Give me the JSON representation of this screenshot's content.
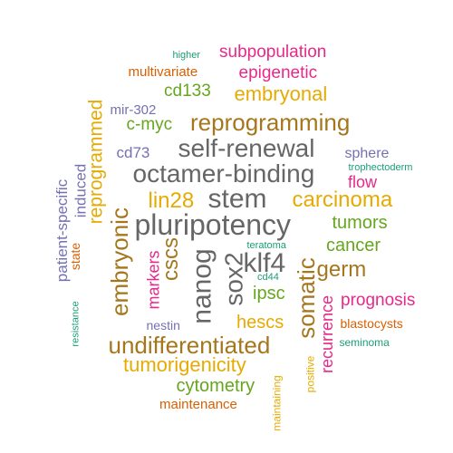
{
  "colors": {
    "teal": "#1B9E77",
    "orange": "#D95F02",
    "purple": "#7570B3",
    "magenta": "#E7298A",
    "green": "#66A61E",
    "gold": "#E6AB02",
    "brown": "#A6761D",
    "gray": "#666666"
  },
  "words": [
    {
      "text": "higher",
      "color": "#1B9E77"
    },
    {
      "text": "subpopulation",
      "color": "#E7298A"
    },
    {
      "text": "multivariate",
      "color": "#D95F02"
    },
    {
      "text": "epigenetic",
      "color": "#E7298A"
    },
    {
      "text": "cd133",
      "color": "#66A61E"
    },
    {
      "text": "embryonal",
      "color": "#E6AB02"
    },
    {
      "text": "mir-302",
      "color": "#7570B3"
    },
    {
      "text": "c-myc",
      "color": "#66A61E"
    },
    {
      "text": "reprogramming",
      "color": "#A6761D"
    },
    {
      "text": "reprogrammed",
      "color": "#E6AB02"
    },
    {
      "text": "cd73",
      "color": "#7570B3"
    },
    {
      "text": "self-renewal",
      "color": "#666666"
    },
    {
      "text": "sphere",
      "color": "#7570B3"
    },
    {
      "text": "trophectoderm",
      "color": "#1B9E77"
    },
    {
      "text": "octamer-binding",
      "color": "#666666"
    },
    {
      "text": "patient-specific",
      "color": "#7570B3"
    },
    {
      "text": "induced",
      "color": "#7570B3"
    },
    {
      "text": "flow",
      "color": "#E7298A"
    },
    {
      "text": "lin28",
      "color": "#E6AB02"
    },
    {
      "text": "stem",
      "color": "#666666"
    },
    {
      "text": "carcinoma",
      "color": "#E6AB02"
    },
    {
      "text": "embryonic",
      "color": "#A6761D"
    },
    {
      "text": "pluripotency",
      "color": "#666666"
    },
    {
      "text": "tumors",
      "color": "#66A61E"
    },
    {
      "text": "state",
      "color": "#D95F02"
    },
    {
      "text": "markers",
      "color": "#E7298A"
    },
    {
      "text": "cscs",
      "color": "#A6761D"
    },
    {
      "text": "nanog",
      "color": "#666666"
    },
    {
      "text": "sox2",
      "color": "#666666"
    },
    {
      "text": "teratoma",
      "color": "#1B9E77"
    },
    {
      "text": "klf4",
      "color": "#666666"
    },
    {
      "text": "cancer",
      "color": "#66A61E"
    },
    {
      "text": "germ",
      "color": "#A6761D"
    },
    {
      "text": "cd44",
      "color": "#1B9E77"
    },
    {
      "text": "somatic",
      "color": "#A6761D"
    },
    {
      "text": "ipsc",
      "color": "#66A61E"
    },
    {
      "text": "prognosis",
      "color": "#E7298A"
    },
    {
      "text": "resistance",
      "color": "#1B9E77"
    },
    {
      "text": "recurrence",
      "color": "#E7298A"
    },
    {
      "text": "hescs",
      "color": "#E6AB02"
    },
    {
      "text": "nestin",
      "color": "#7570B3"
    },
    {
      "text": "blastocysts",
      "color": "#D95F02"
    },
    {
      "text": "undifferentiated",
      "color": "#A6761D"
    },
    {
      "text": "seminoma",
      "color": "#1B9E77"
    },
    {
      "text": "tumorigenicity",
      "color": "#E6AB02"
    },
    {
      "text": "positive",
      "color": "#E6AB02"
    },
    {
      "text": "cytometry",
      "color": "#66A61E"
    },
    {
      "text": "maintaining",
      "color": "#E6AB02"
    },
    {
      "text": "maintenance",
      "color": "#D95F02"
    }
  ]
}
